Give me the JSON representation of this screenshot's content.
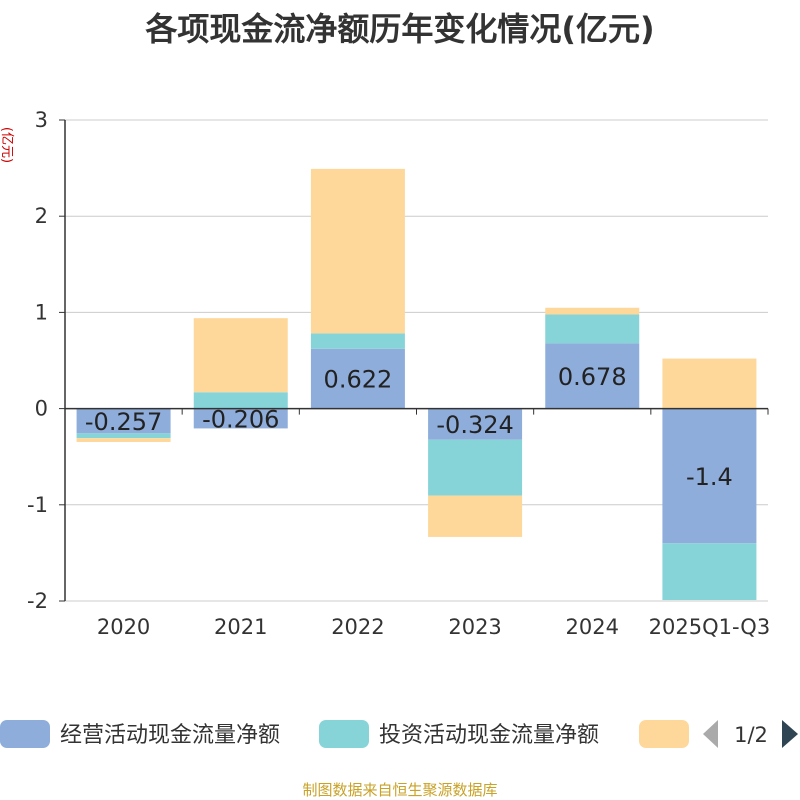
{
  "chart_data": {
    "type": "bar",
    "stacked": true,
    "title": "各项现金流净额历年变化情况(亿元)",
    "ylabel": "(亿元)",
    "xlabel": "",
    "categories": [
      "2020",
      "2021",
      "2022",
      "2023",
      "2024",
      "2025Q1-Q3"
    ],
    "ylim": [
      -2,
      3
    ],
    "yticks": [
      -2,
      -1,
      0,
      1,
      2,
      3
    ],
    "grid": true,
    "series": [
      {
        "name": "经营活动现金流量净额",
        "color": "#8eaddb",
        "values": [
          -0.257,
          -0.206,
          0.622,
          -0.324,
          0.678,
          -1.4
        ],
        "labels": [
          "-0.257",
          "-0.206",
          "0.622",
          "-0.324",
          "0.678",
          "-1.4"
        ]
      },
      {
        "name": "投资活动现金流量净额",
        "color": "#86d4d8",
        "values": [
          -0.05,
          0.17,
          0.16,
          -0.58,
          0.3,
          -0.59
        ]
      },
      {
        "name": "",
        "color": "#fed89a",
        "values": [
          -0.04,
          0.77,
          1.71,
          -0.43,
          0.07,
          0.52
        ]
      }
    ],
    "legend": {
      "position": "bottom",
      "page": "1/2"
    }
  },
  "source": "制图数据来自恒生聚源数据库"
}
